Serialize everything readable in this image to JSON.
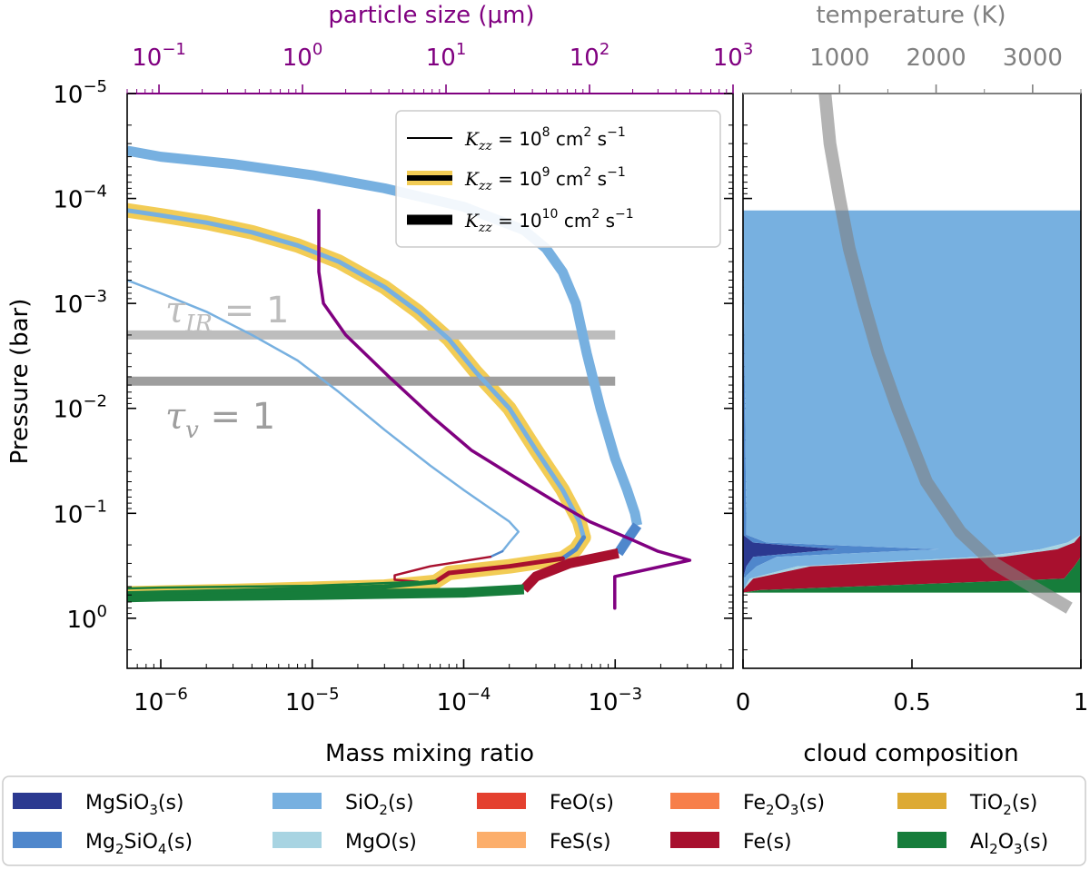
{
  "colors": {
    "particle_axis": "#800080",
    "temperature_axis": "#808080",
    "tau_ir": "#bdbdbd",
    "tau_v": "#9e9e9e",
    "highlight": "#f2cc55",
    "MgSiO3": "#2b3990",
    "Mg2SiO4": "#4f87cc",
    "SiO2": "#77b0e0",
    "MgO": "#a8d4e2",
    "FeO": "#e4402f",
    "FeS": "#fcae6b",
    "Fe2O3": "#f77f4a",
    "Fe": "#a8102e",
    "TiO2": "#ddaa33",
    "Al2O3": "#167d3b",
    "purple": "#800080"
  },
  "left_panel": {
    "xlabel": "Mass mixing ratio",
    "ylabel": "Pressure (bar)",
    "top_axis_label": "particle size (μm)",
    "x_ticks": [
      {
        "value": 1e-06,
        "base": "10",
        "exp": "−6"
      },
      {
        "value": 1e-05,
        "base": "10",
        "exp": "−5"
      },
      {
        "value": 0.0001,
        "base": "10",
        "exp": "−4"
      },
      {
        "value": 0.001,
        "base": "10",
        "exp": "−3"
      }
    ],
    "y_ticks": [
      {
        "value": 1e-05,
        "base": "10",
        "exp": "−5"
      },
      {
        "value": 0.0001,
        "base": "10",
        "exp": "−4"
      },
      {
        "value": 0.001,
        "base": "10",
        "exp": "−3"
      },
      {
        "value": 0.01,
        "base": "10",
        "exp": "−2"
      },
      {
        "value": 0.1,
        "base": "10",
        "exp": "−1"
      },
      {
        "value": 1,
        "base": "10",
        "exp": "0"
      }
    ],
    "top_ticks": [
      {
        "value": 0.1,
        "base": "10",
        "exp": "−1"
      },
      {
        "value": 1,
        "base": "10",
        "exp": "0"
      },
      {
        "value": 10,
        "base": "10",
        "exp": "1"
      },
      {
        "value": 100,
        "base": "10",
        "exp": "2"
      },
      {
        "value": 1000,
        "base": "10",
        "exp": "3"
      }
    ],
    "annotations": [
      {
        "id": "tau-ir",
        "sym": "τ",
        "sub": "IR",
        "rest": " = 1"
      },
      {
        "id": "tau-v",
        "sym": "τ",
        "sub": "v",
        "rest": " = 1"
      }
    ],
    "legend": [
      {
        "exp": "8",
        "style": "thin"
      },
      {
        "exp": "9",
        "style": "highlight"
      },
      {
        "exp": "10",
        "style": "thick"
      }
    ],
    "legend_text": {
      "k": "K",
      "k_sub": "zz",
      "eq": " = 10",
      "unit": " cm",
      "unit_sup": "2",
      "unit2": " s",
      "unit2_sup": "−1"
    }
  },
  "right_panel": {
    "xlabel": "cloud composition",
    "top_axis_label": "temperature (K)",
    "x_ticks": [
      {
        "value": 0,
        "label": "0"
      },
      {
        "value": 0.5,
        "label": "0.5"
      },
      {
        "value": 1,
        "label": "1"
      }
    ],
    "top_ticks": [
      {
        "value": 1000,
        "label": "1000"
      },
      {
        "value": 2000,
        "label": "2000"
      },
      {
        "value": 3000,
        "label": "3000"
      }
    ]
  },
  "bottom_legend": [
    {
      "key": "MgSiO3",
      "pre": "MgSiO",
      "sub": "3",
      "post": "(s)"
    },
    {
      "key": "SiO2",
      "pre": "SiO",
      "sub": "2",
      "post": "(s)"
    },
    {
      "key": "FeO",
      "pre": "FeO(s)",
      "sub": "",
      "post": ""
    },
    {
      "key": "Fe2O3",
      "pre": "Fe",
      "sub": "2",
      "post": "O",
      "sub2": "3",
      "post2": "(s)"
    },
    {
      "key": "TiO2",
      "pre": "TiO",
      "sub": "2",
      "post": "(s)"
    },
    {
      "key": "Mg2SiO4",
      "pre": "Mg",
      "sub": "2",
      "post": "SiO",
      "sub2": "4",
      "post2": "(s)"
    },
    {
      "key": "MgO",
      "pre": "MgO(s)",
      "sub": "",
      "post": ""
    },
    {
      "key": "FeS",
      "pre": "FeS(s)",
      "sub": "",
      "post": ""
    },
    {
      "key": "Fe",
      "pre": "Fe(s)",
      "sub": "",
      "post": ""
    },
    {
      "key": "Al2O3",
      "pre": "Al",
      "sub": "2",
      "post": "O",
      "sub2": "3",
      "post2": "(s)"
    }
  ],
  "chart_data": [
    {
      "type": "line",
      "panel": "left",
      "xlabel": "Mass mixing ratio",
      "ylabel": "Pressure (bar)",
      "top_xlabel": "particle size (μm)",
      "xscale": "log",
      "yscale": "log",
      "xlim": [
        6e-07,
        0.006
      ],
      "ylim": [
        3,
        1e-05
      ],
      "top_xlim": [
        0.06,
        1000
      ],
      "hlines": [
        {
          "name": "tau_IR",
          "y": 0.002,
          "xmax": 0.001
        },
        {
          "name": "tau_v",
          "y": 0.0055,
          "xmax": 0.001
        }
      ],
      "series": [
        {
          "name": "SiO2, Kzz=1e10",
          "color": "SiO2",
          "width": 11,
          "x": [
            6e-07,
            1e-06,
            3e-06,
            1e-05,
            3e-05,
            0.0001,
            0.00025,
            0.00035,
            0.00045,
            0.00055,
            0.00065,
            0.0008,
            0.001,
            0.0012,
            0.00135,
            0.0014
          ],
          "y": [
            3.5e-05,
            4e-05,
            4.7e-05,
            6e-05,
            8e-05,
            0.00012,
            0.0002,
            0.0003,
            0.0005,
            0.001,
            0.003,
            0.01,
            0.03,
            0.06,
            0.1,
            0.13
          ]
        },
        {
          "name": "Mg2SiO4, Kzz=1e10",
          "color": "Mg2SiO4",
          "width": 11,
          "x": [
            0.0014,
            0.0012,
            0.00105
          ],
          "y": [
            0.13,
            0.18,
            0.24
          ]
        },
        {
          "name": "Fe, Kzz=1e10",
          "color": "Fe",
          "width": 11,
          "x": [
            0.00105,
            0.0005,
            0.0003,
            0.00025
          ],
          "y": [
            0.24,
            0.3,
            0.4,
            0.53
          ]
        },
        {
          "name": "Al2O3, Kzz=1e10",
          "color": "Al2O3",
          "width": 11,
          "x": [
            0.00025,
            0.0001,
            1e-05,
            1e-06,
            6e-07
          ],
          "y": [
            0.53,
            0.57,
            0.6,
            0.62,
            0.63
          ]
        },
        {
          "name": "SiO2, Kzz=1e9",
          "color": "SiO2",
          "width": 5,
          "highlight": true,
          "x": [
            6e-07,
            1e-06,
            2e-06,
            4e-06,
            8e-06,
            1.5e-05,
            3e-05,
            5e-05,
            8e-05,
            0.00012,
            0.0002,
            0.0003,
            0.00045,
            0.00058,
            0.00062
          ],
          "y": [
            0.00013,
            0.000145,
            0.00017,
            0.00021,
            0.00028,
            0.0004,
            0.0007,
            0.0012,
            0.0022,
            0.0045,
            0.01,
            0.025,
            0.06,
            0.12,
            0.17
          ]
        },
        {
          "name": "Mg2SiO4, Kzz=1e9",
          "color": "Mg2SiO4",
          "width": 5,
          "highlight": true,
          "x": [
            0.00062,
            0.00055,
            0.00045
          ],
          "y": [
            0.17,
            0.22,
            0.27
          ]
        },
        {
          "name": "Fe, Kzz=1e9",
          "color": "Fe",
          "width": 5,
          "highlight": true,
          "x": [
            0.00045,
            0.0002,
            8e-05,
            6.5e-05
          ],
          "y": [
            0.27,
            0.32,
            0.37,
            0.45
          ]
        },
        {
          "name": "Al2O3, Kzz=1e9",
          "color": "Al2O3",
          "width": 5,
          "highlight": true,
          "x": [
            6.5e-05,
            3e-05,
            3e-06,
            6e-07
          ],
          "y": [
            0.45,
            0.5,
            0.55,
            0.58
          ]
        },
        {
          "name": "SiO2, Kzz=1e8",
          "color": "SiO2",
          "width": 2.5,
          "x": [
            6e-07,
            1e-06,
            2e-06,
            4e-06,
            8e-06,
            1.5e-05,
            3e-05,
            6e-05,
            0.0001,
            0.00015,
            0.0002,
            0.00023,
            0.0002,
            0.00018
          ],
          "y": [
            0.0006,
            0.0008,
            0.0012,
            0.002,
            0.0035,
            0.007,
            0.016,
            0.035,
            0.06,
            0.09,
            0.12,
            0.15,
            0.19,
            0.23
          ]
        },
        {
          "name": "Mg2SiO4, Kzz=1e8",
          "color": "Mg2SiO4",
          "width": 2.5,
          "x": [
            0.00018,
            0.00015
          ],
          "y": [
            0.23,
            0.26
          ]
        },
        {
          "name": "Fe, Kzz=1e8",
          "color": "Fe",
          "width": 2.5,
          "x": [
            0.00015,
            6e-05,
            3.5e-05,
            3.5e-05,
            5e-05
          ],
          "y": [
            0.26,
            0.32,
            0.39,
            0.43,
            0.45
          ]
        },
        {
          "name": "Al2O3, Kzz=1e8",
          "color": "Al2O3",
          "width": 2.5,
          "x": [
            5e-05,
            1e-05,
            1e-06,
            6e-07
          ],
          "y": [
            0.45,
            0.49,
            0.51,
            0.52
          ]
        },
        {
          "name": "particle size",
          "color": "purple",
          "width": 3.5,
          "axis": "top",
          "x": [
            1.3,
            1.3,
            1.4,
            2,
            4,
            8,
            15,
            30,
            60,
            100,
            200,
            300,
            500,
            150,
            150
          ],
          "y": [
            0.00013,
            0.0005,
            0.001,
            0.002,
            0.005,
            0.012,
            0.025,
            0.045,
            0.08,
            0.12,
            0.18,
            0.23,
            0.28,
            0.4,
            0.8
          ]
        }
      ]
    },
    {
      "type": "area",
      "panel": "right",
      "xlabel": "cloud composition",
      "top_xlabel": "temperature (K)",
      "xlim": [
        0,
        1
      ],
      "ylim": [
        3,
        1e-05
      ],
      "yscale": "log",
      "top_xlim": [
        0,
        3500
      ],
      "y": [
        0.00013,
        0.16,
        0.19,
        0.22,
        0.26,
        0.32,
        0.42,
        0.54,
        0.57
      ],
      "stack": [
        {
          "name": "MgSiO3",
          "values": [
            0,
            0,
            0.03,
            0.28,
            0.03,
            0.01,
            0,
            0,
            0
          ]
        },
        {
          "name": "Mg2SiO4",
          "values": [
            0,
            0.01,
            0.04,
            0.3,
            0.07,
            0.03,
            0,
            0,
            0
          ]
        },
        {
          "name": "SiO2",
          "values": [
            1,
            0.99,
            0.89,
            0.3,
            0.6,
            0.12,
            0.02,
            0,
            0
          ]
        },
        {
          "name": "MgO",
          "values": [
            0,
            0,
            0.02,
            0.05,
            0.07,
            0.04,
            0.01,
            0,
            0
          ]
        },
        {
          "name": "FeO",
          "values": [
            0,
            0,
            0,
            0,
            0,
            0,
            0,
            0,
            0
          ]
        },
        {
          "name": "FeS",
          "values": [
            0,
            0,
            0,
            0,
            0,
            0,
            0,
            0,
            0
          ]
        },
        {
          "name": "Fe2O3",
          "values": [
            0,
            0,
            0,
            0,
            0,
            0,
            0,
            0,
            0
          ]
        },
        {
          "name": "Fe",
          "values": [
            0,
            0,
            0.02,
            0.07,
            0.23,
            0.78,
            0.92,
            0.05,
            0
          ]
        },
        {
          "name": "TiO2",
          "values": [
            0,
            0,
            0,
            0,
            0,
            0,
            0,
            0,
            0
          ]
        },
        {
          "name": "Al2O3",
          "values": [
            0,
            0,
            0,
            0,
            0,
            0.02,
            0.05,
            0.95,
            1
          ]
        }
      ],
      "temperature_profile": {
        "T": [
          850,
          900,
          1000,
          1100,
          1250,
          1400,
          1600,
          1900,
          2250,
          2600,
          3000,
          3380
        ],
        "P": [
          1e-05,
          3e-05,
          0.0001,
          0.0003,
          0.001,
          0.003,
          0.01,
          0.05,
          0.15,
          0.3,
          0.5,
          0.8
        ]
      }
    }
  ]
}
